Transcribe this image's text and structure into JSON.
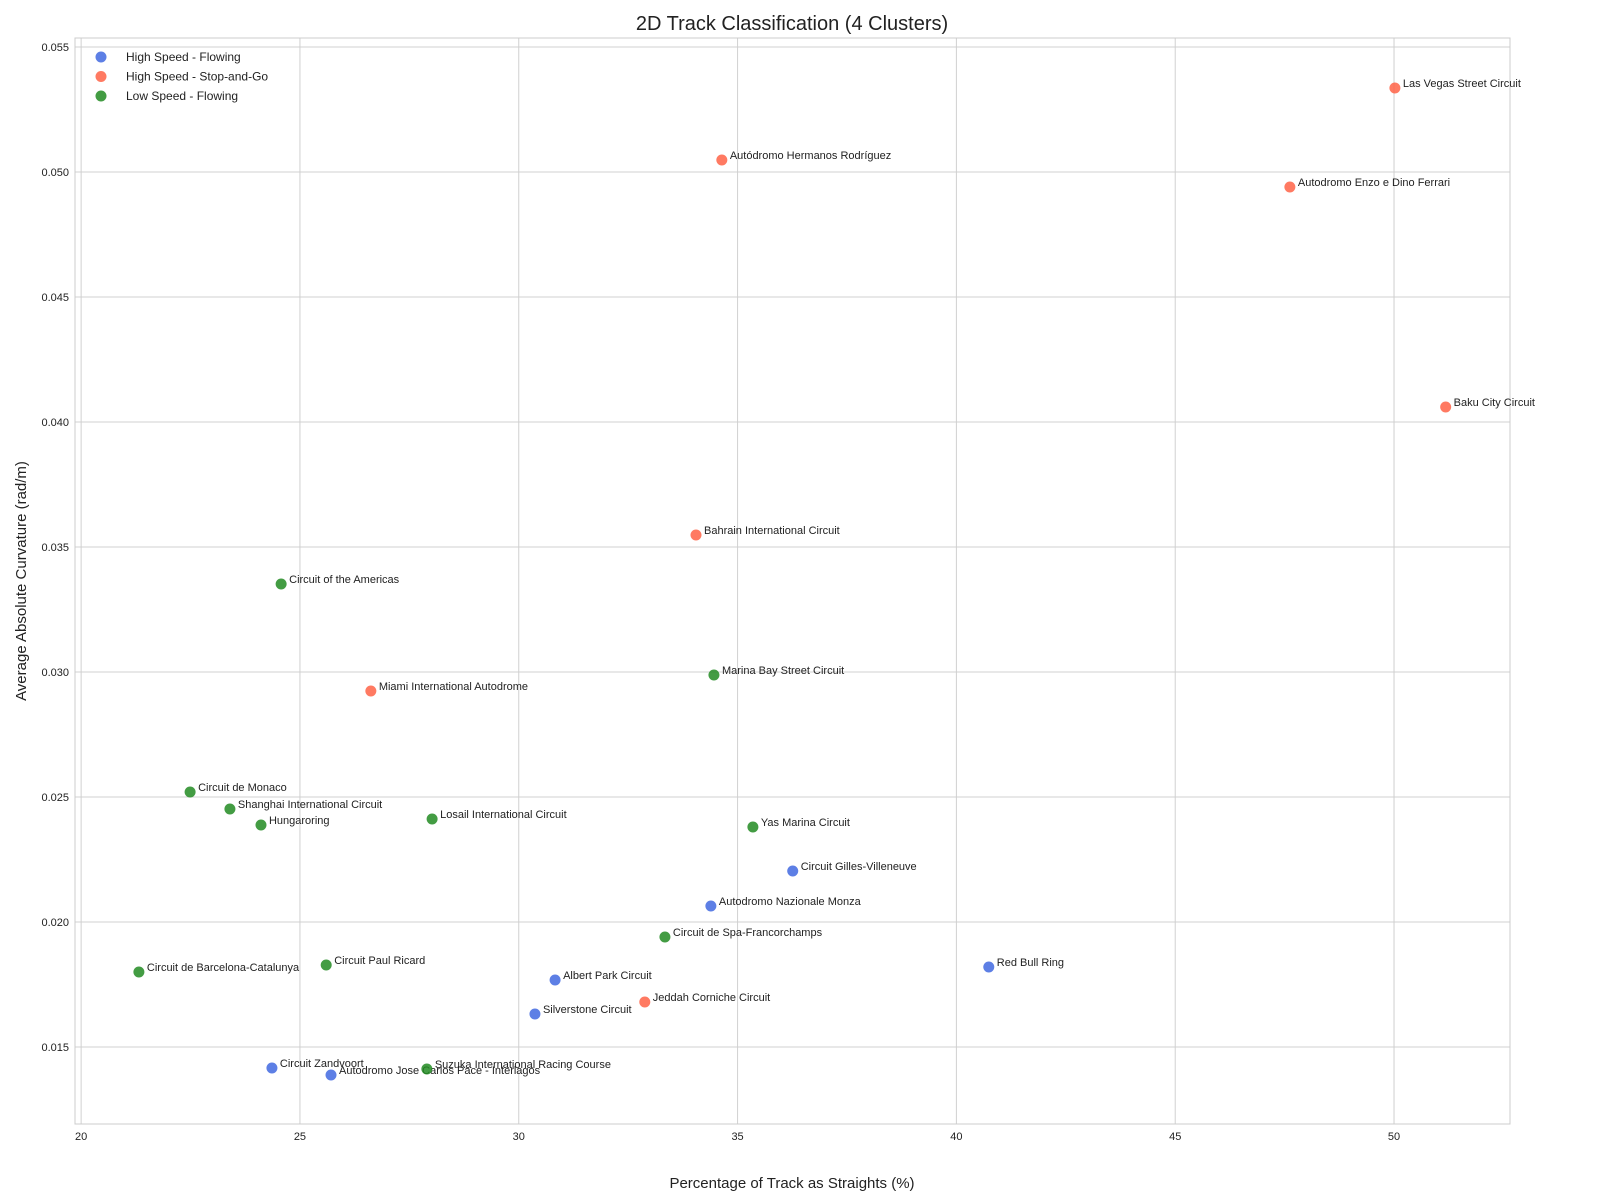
{
  "chart_data": {
    "type": "scatter",
    "title": "2D Track Classification (4 Clusters)",
    "xlabel": "Percentage of Track as Straights (%)",
    "ylabel": "Average Absolute Curvature (rad/m)",
    "xlim": [
      19.86,
      52.65
    ],
    "ylim": [
      0.01192,
      0.05536
    ],
    "xticks": [
      20,
      25,
      30,
      35,
      40,
      45,
      50
    ],
    "yticks": [
      0.015,
      0.02,
      0.025,
      0.03,
      0.035,
      0.04,
      0.045,
      0.05,
      0.055
    ],
    "ytick_labels": [
      "0.015",
      "0.020",
      "0.025",
      "0.030",
      "0.035",
      "0.040",
      "0.045",
      "0.050",
      "0.055"
    ],
    "grid": true,
    "legend_position": "top-left",
    "series": [
      {
        "name": "High Speed - Flowing",
        "color": "#4169e1",
        "points": [
          {
            "label": "Circuit Gilles-Villeneuve",
            "x": 36.26,
            "y": 0.02204
          },
          {
            "label": "Autodromo Nazionale Monza",
            "x": 34.39,
            "y": 0.02064
          },
          {
            "label": "Red Bull Ring",
            "x": 40.74,
            "y": 0.0182
          },
          {
            "label": "Albert Park Circuit",
            "x": 30.83,
            "y": 0.01768
          },
          {
            "label": "Silverstone Circuit",
            "x": 30.37,
            "y": 0.01632
          },
          {
            "label": "Circuit Zandvoort",
            "x": 24.36,
            "y": 0.01416
          },
          {
            "label": "Autodromo Jose Carlos Pace - Interlagos",
            "x": 25.71,
            "y": 0.01388
          }
        ]
      },
      {
        "name": "High Speed - Stop-and-Go",
        "color": "#ff6347",
        "points": [
          {
            "label": "Las Vegas Street Circuit",
            "x": 50.02,
            "y": 0.05336
          },
          {
            "label": "Autódromo Hermanos Rodríguez",
            "x": 34.64,
            "y": 0.05048
          },
          {
            "label": "Autodromo Enzo e Dino Ferrari",
            "x": 47.62,
            "y": 0.0494
          },
          {
            "label": "Baku City Circuit",
            "x": 51.18,
            "y": 0.0406
          },
          {
            "label": "Bahrain International Circuit",
            "x": 34.05,
            "y": 0.03548
          },
          {
            "label": "Miami International Autodrome",
            "x": 26.62,
            "y": 0.02924
          },
          {
            "label": "Jeddah Corniche Circuit",
            "x": 32.88,
            "y": 0.0168
          }
        ]
      },
      {
        "name": "Low Speed - Flowing",
        "color": "#228b22",
        "points": [
          {
            "label": "Circuit of the Americas",
            "x": 24.57,
            "y": 0.03352
          },
          {
            "label": "Marina Bay Street Circuit",
            "x": 34.46,
            "y": 0.02988
          },
          {
            "label": "Circuit de Monaco",
            "x": 22.49,
            "y": 0.0252
          },
          {
            "label": "Shanghai International Circuit",
            "x": 23.4,
            "y": 0.02452
          },
          {
            "label": "Hungaroring",
            "x": 24.11,
            "y": 0.02388
          },
          {
            "label": "Losail International Circuit",
            "x": 28.02,
            "y": 0.02412
          },
          {
            "label": "Yas Marina Circuit",
            "x": 35.35,
            "y": 0.0238
          },
          {
            "label": "Circuit de Spa-Francorchamps",
            "x": 33.34,
            "y": 0.0194
          },
          {
            "label": "Circuit de Barcelona-Catalunya",
            "x": 21.32,
            "y": 0.018
          },
          {
            "label": "Circuit Paul Ricard",
            "x": 25.6,
            "y": 0.01828
          },
          {
            "label": "Suzuka International Racing Course",
            "x": 27.9,
            "y": 0.01412
          }
        ]
      }
    ]
  }
}
